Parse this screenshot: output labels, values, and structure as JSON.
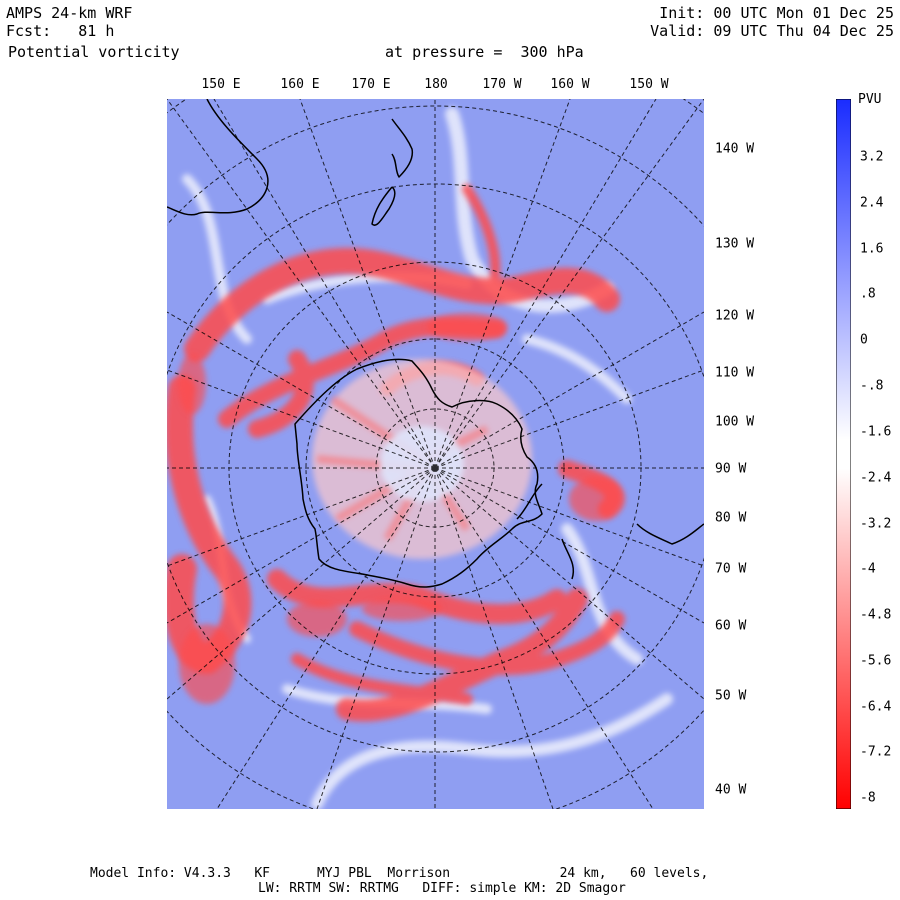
{
  "header": {
    "model": "AMPS 24-km WRF",
    "forecast": "Fcst:   81 h",
    "field": "Potential vorticity",
    "pressure": "at pressure =  300 hPa",
    "init": "Init: 00 UTC Mon 01 Dec 25",
    "valid": "Valid: 09 UTC Thu 04 Dec 25"
  },
  "top_longitudes": [
    "150 E",
    "160 E",
    "170 E",
    "180",
    "170 W",
    "160 W",
    "150 W"
  ],
  "right_longitudes": [
    "140 W",
    "130 W",
    "120 W",
    "110 W",
    "100 W",
    "90 W",
    "80 W",
    "70 W",
    "60 W",
    "50 W",
    "40 W"
  ],
  "colorbar": {
    "unit": "PVU",
    "labels": [
      "3.2",
      "2.4",
      "1.6",
      ".8",
      "0",
      "-.8",
      "-1.6",
      "-2.4",
      "-3.2",
      "-4",
      "-4.8",
      "-5.6",
      "-6.4",
      "-7.2",
      "-8"
    ],
    "max_color": "#1a2cff",
    "zero_color": "#ffffff",
    "min_color": "#ff0000"
  },
  "footer": {
    "line1": "Model Info: V4.3.3   KF      MYJ PBL  Morrison              24 km,   60 levels,",
    "line2": "LW: RRTM SW: RRTMG   DIFF: simple KM: 2D Smagor"
  },
  "colors": {
    "background_field": "#8f9ef2",
    "negative_pv": "#ff4b4b",
    "coast": "#000000"
  }
}
